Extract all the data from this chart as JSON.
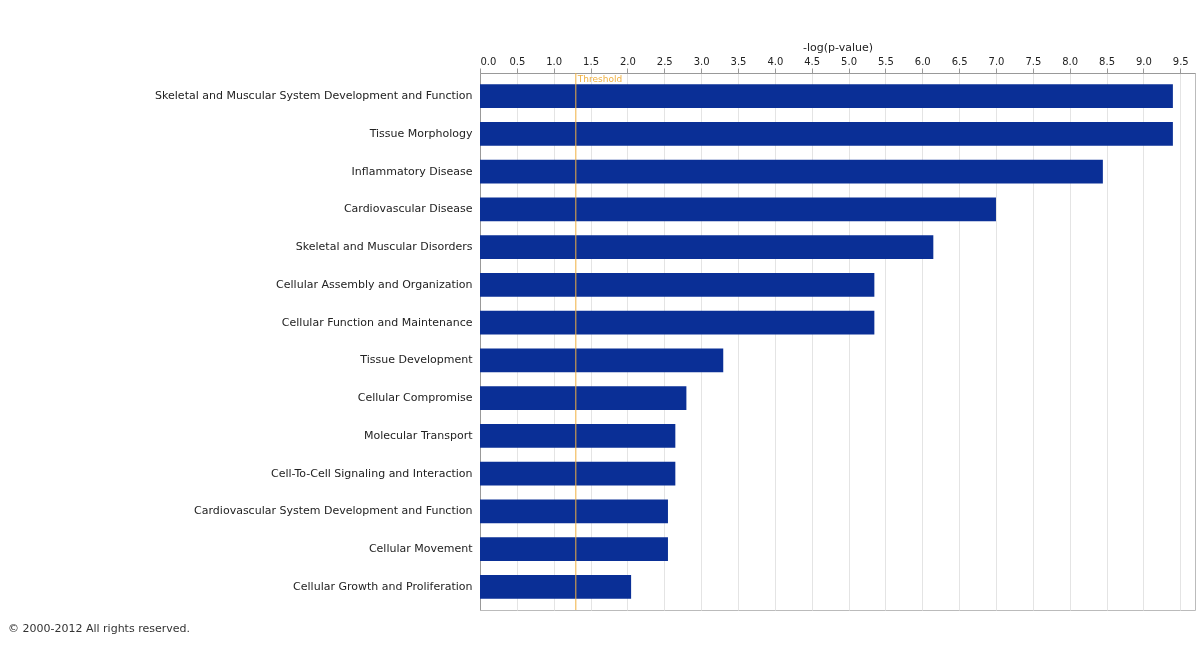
{
  "chart_data": {
    "type": "bar",
    "orientation": "horizontal",
    "xlabel": "-log(p-value)",
    "categories": [
      "Skeletal and Muscular System Development and Function",
      "Tissue Morphology",
      "Inflammatory Disease",
      "Cardiovascular Disease",
      "Skeletal and Muscular Disorders",
      "Cellular Assembly and Organization",
      "Cellular Function and Maintenance",
      "Tissue Development",
      "Cellular Compromise",
      "Molecular Transport",
      "Cell-To-Cell Signaling and Interaction",
      "Cardiovascular System Development and Function",
      "Cellular Movement",
      "Cellular Growth and Proliferation"
    ],
    "values": [
      9.4,
      9.4,
      8.45,
      7.0,
      6.15,
      5.35,
      5.35,
      3.3,
      2.8,
      2.65,
      2.65,
      2.55,
      2.55,
      2.05
    ],
    "color": "#0a2f96",
    "xlim": [
      0,
      9.7
    ],
    "xticks": [
      {
        "value": 0,
        "label": "0.0"
      },
      {
        "value": 0.5,
        "label": "0.5"
      },
      {
        "value": 1,
        "label": "1.0"
      },
      {
        "value": 1.5,
        "label": "1.5"
      },
      {
        "value": 2,
        "label": "2.0"
      },
      {
        "value": 2.5,
        "label": "2.5"
      },
      {
        "value": 3,
        "label": "3.0"
      },
      {
        "value": 3.5,
        "label": "3.5"
      },
      {
        "value": 4,
        "label": "4.0"
      },
      {
        "value": 4.5,
        "label": "4.5"
      },
      {
        "value": 5,
        "label": "5.0"
      },
      {
        "value": 5.5,
        "label": "5.5"
      },
      {
        "value": 6,
        "label": "6.0"
      },
      {
        "value": 6.5,
        "label": "6.5"
      },
      {
        "value": 7,
        "label": "7.0"
      },
      {
        "value": 7.5,
        "label": "7.5"
      },
      {
        "value": 8,
        "label": "8.0"
      },
      {
        "value": 8.5,
        "label": "8.5"
      },
      {
        "value": 9,
        "label": "9.0"
      },
      {
        "value": 9.5,
        "label": "9.5"
      }
    ],
    "grid": "x",
    "ref_lines": [
      {
        "axis": "x",
        "value": 1.3,
        "label": "Threshold",
        "color": "#f0b040"
      }
    ],
    "annotations": [
      "© 2000-2012 All rights reserved."
    ]
  }
}
